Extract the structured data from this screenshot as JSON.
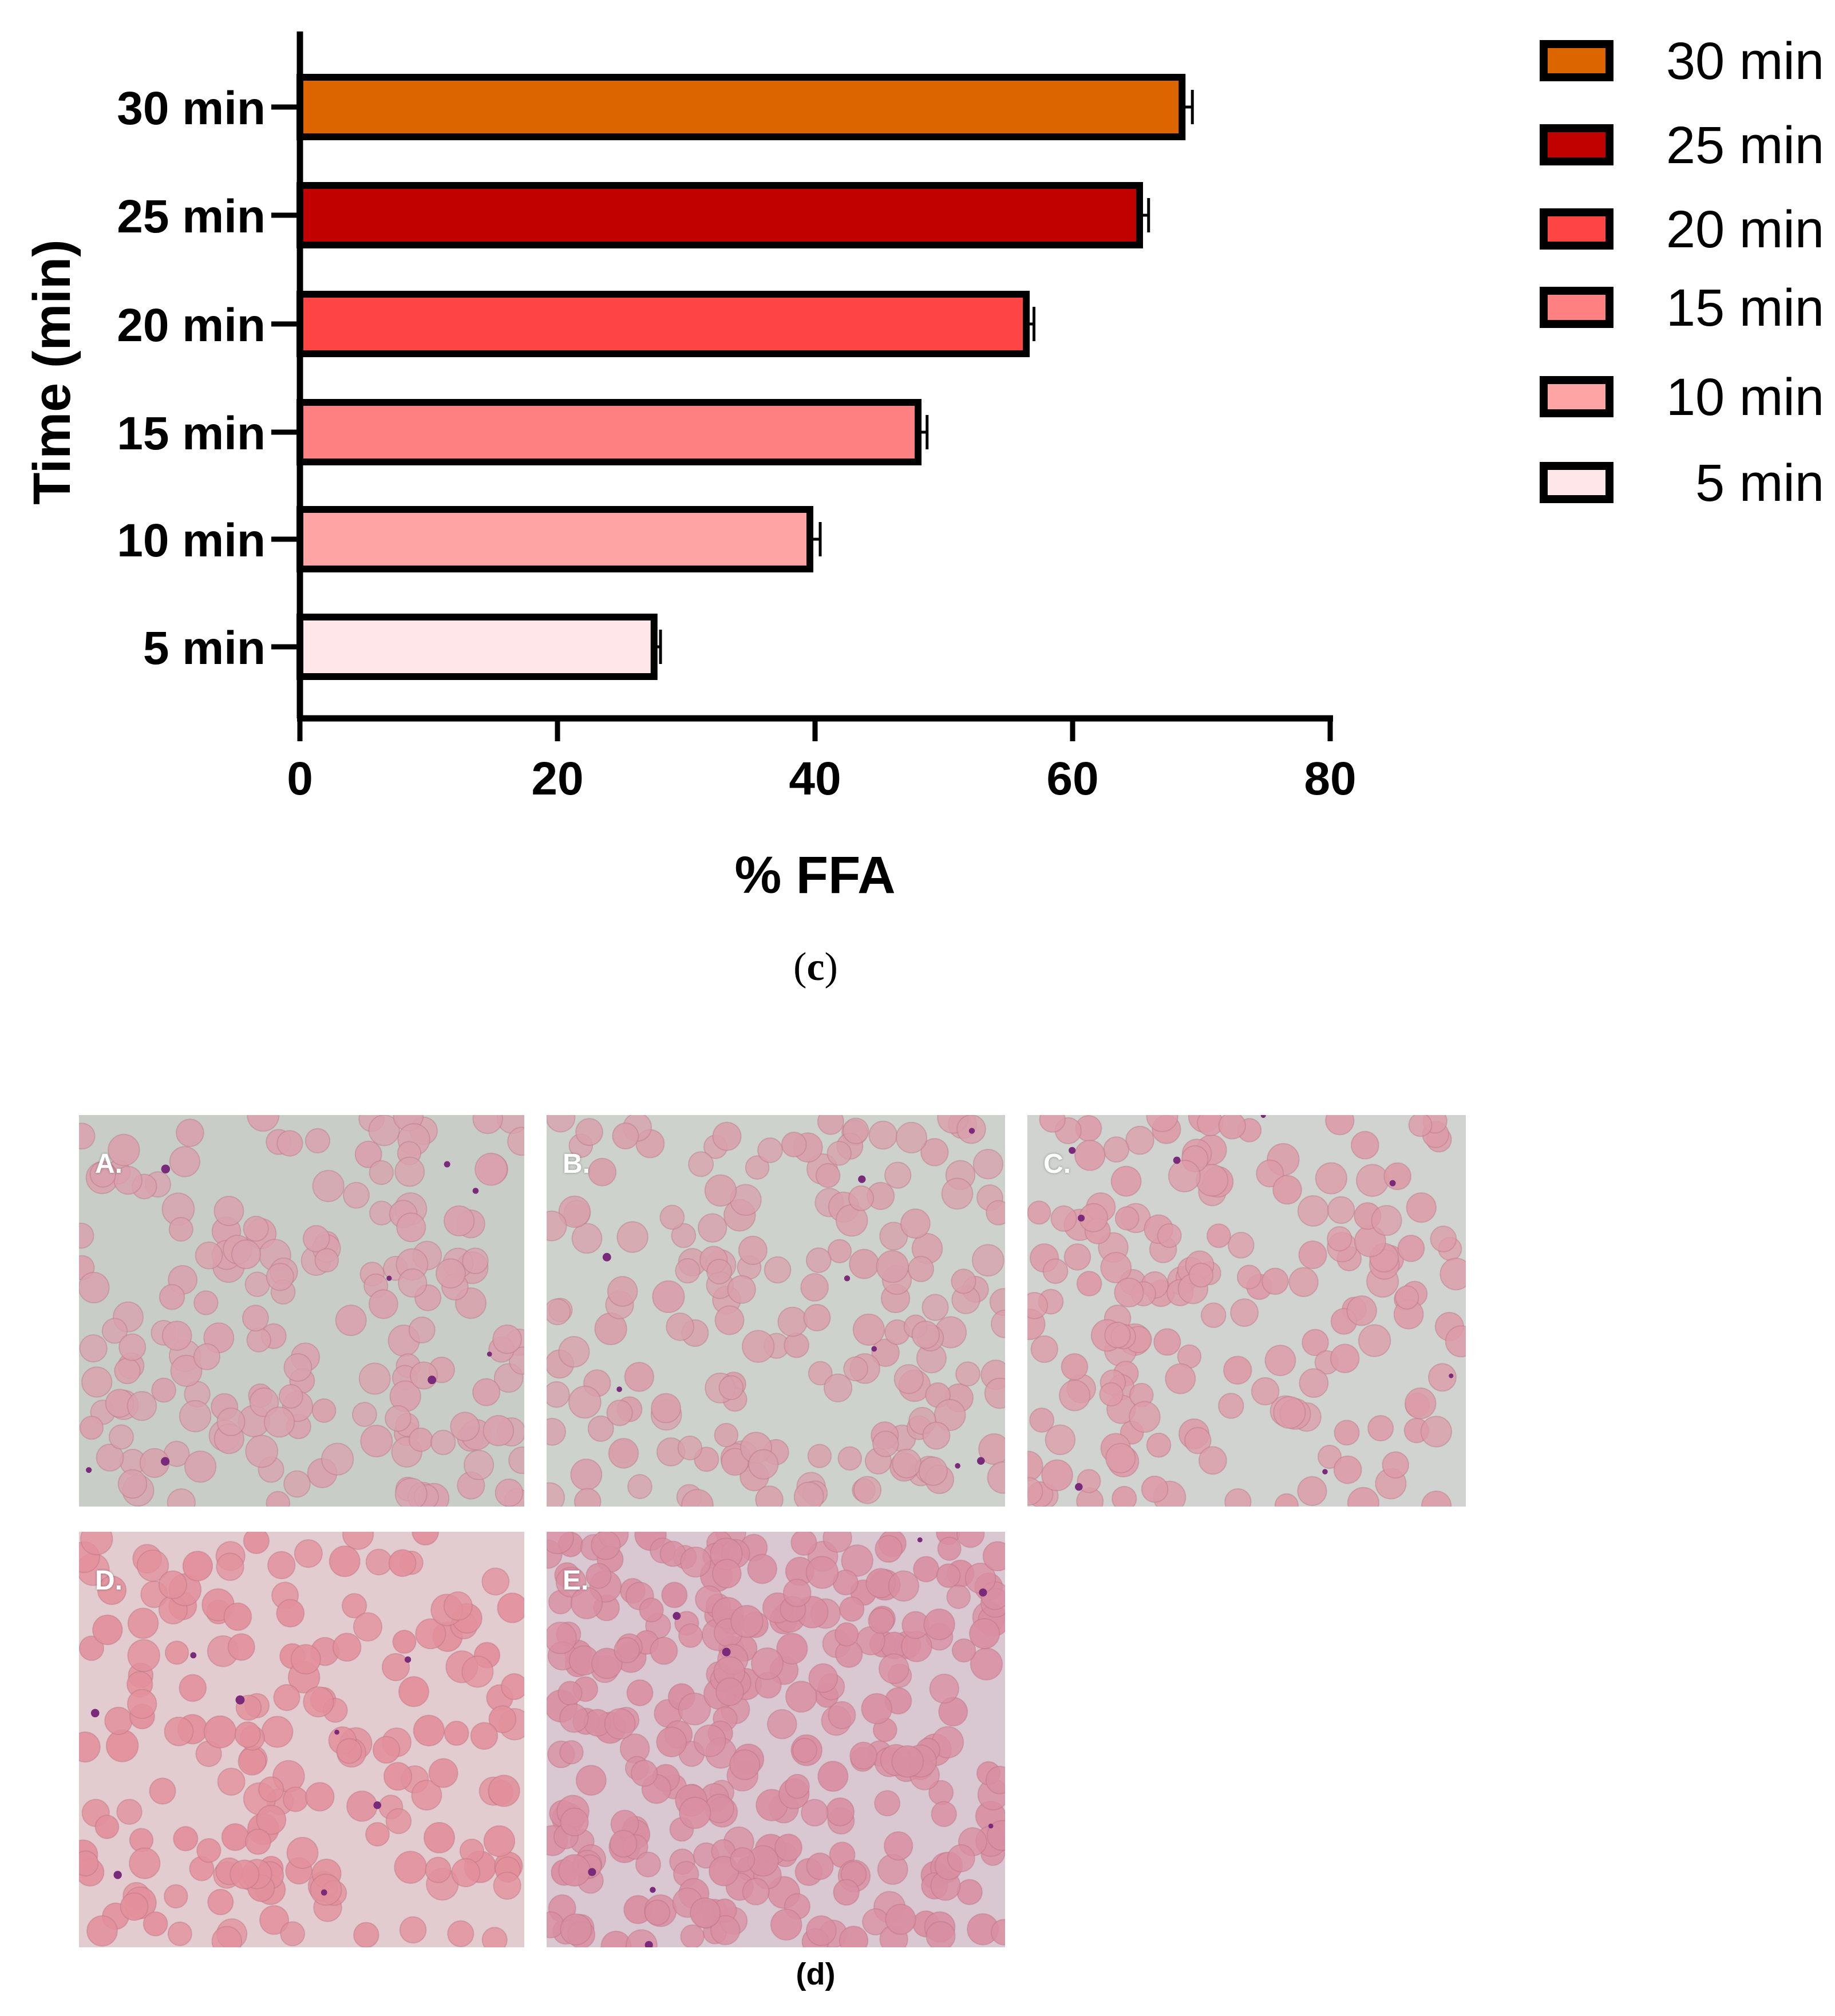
{
  "chart_data": {
    "type": "bar",
    "orientation": "horizontal",
    "categories": [
      "30 min",
      "25 min",
      "20 min",
      "15 min",
      "10 min",
      "5 min"
    ],
    "values": [
      68.5,
      65.2,
      56.4,
      48.0,
      39.6,
      27.5
    ],
    "errors": [
      0.8,
      0.7,
      0.6,
      0.7,
      0.8,
      0.5
    ],
    "colors": [
      "#dd6500",
      "#c10000",
      "#ff4444",
      "#ff8080",
      "#ffa4a4",
      "#ffe6e8"
    ],
    "xlabel": "% FFA",
    "ylabel": "Time (min)",
    "xlim": [
      0,
      80
    ],
    "xticks": [
      "0",
      "20",
      "40",
      "60",
      "80"
    ],
    "grid": false,
    "legend_position": "right",
    "legend": [
      "30 min",
      "25 min",
      "20 min",
      "15 min",
      "10 min",
      "5 min"
    ]
  },
  "captions": {
    "c_open": "(",
    "c_letter": "c",
    "c_close": ")",
    "d": "(d)"
  },
  "panels": [
    {
      "label": "A.",
      "tint": "#d9a1ad",
      "bg": "#c8cec7"
    },
    {
      "label": "B.",
      "tint": "#d8a0ab",
      "bg": "#cdd3cc"
    },
    {
      "label": "C.",
      "tint": "#dc9ca8",
      "bg": "#d0d3d0"
    },
    {
      "label": "D.",
      "tint": "#e2909c",
      "bg": "#e3ccd0"
    },
    {
      "label": "E.",
      "tint": "#d98fa2",
      "bg": "#d9c8d2"
    }
  ]
}
